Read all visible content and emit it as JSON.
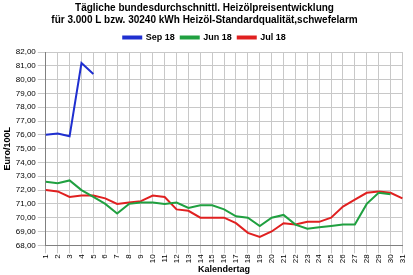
{
  "chart_data": {
    "type": "line",
    "title": [
      "Tägliche bundesdurchschnittl. Heizölpreisentwicklung",
      "für 3.000 L bzw. 30240 kWh Heizöl-Standardqualität,schwefelarm"
    ],
    "x_label": "Kalendertag",
    "y_label": "Euro/100L",
    "categories": [
      "1",
      "2",
      "3",
      "4",
      "5",
      "6",
      "7",
      "8",
      "9",
      "10",
      "11",
      "12",
      "13",
      "14",
      "15",
      "16",
      "17",
      "18",
      "19",
      "20",
      "21",
      "22",
      "23",
      "24",
      "25",
      "26",
      "27",
      "28",
      "29",
      "30",
      "31"
    ],
    "series": [
      {
        "name": "Sep 18",
        "color": "#1f2fd0",
        "values": [
          76.0,
          76.1,
          75.9,
          81.2,
          80.4,
          null,
          null,
          null,
          null,
          null,
          null,
          null,
          null,
          null,
          null,
          null,
          null,
          null,
          null,
          null,
          null,
          null,
          null,
          null,
          null,
          null,
          null,
          null,
          null,
          null,
          null
        ]
      },
      {
        "name": "Jun 18",
        "color": "#20a040",
        "values": [
          72.6,
          72.5,
          72.7,
          72.0,
          71.5,
          71.0,
          70.3,
          71.0,
          71.1,
          71.1,
          71.0,
          71.1,
          70.7,
          70.9,
          70.9,
          70.6,
          70.1,
          70.0,
          69.4,
          70.0,
          70.2,
          69.5,
          69.2,
          69.3,
          69.4,
          69.5,
          69.5,
          71.0,
          71.8,
          71.7,
          null
        ]
      },
      {
        "name": "Jul 18",
        "color": "#e02020",
        "values": [
          72.0,
          71.9,
          71.5,
          71.6,
          71.6,
          71.4,
          71.0,
          71.1,
          71.2,
          71.6,
          71.5,
          70.6,
          70.5,
          70.0,
          70.0,
          70.0,
          69.6,
          68.9,
          68.6,
          69.0,
          69.6,
          69.5,
          69.7,
          69.7,
          70.0,
          70.8,
          71.3,
          71.8,
          71.9,
          71.8,
          71.4
        ]
      }
    ],
    "ylim": [
      68,
      82
    ],
    "yticks": [
      {
        "value": 68,
        "label": "68,00"
      },
      {
        "value": 69,
        "label": "69,00"
      },
      {
        "value": 70,
        "label": "70,00"
      },
      {
        "value": 71,
        "label": "71,00"
      },
      {
        "value": 72,
        "label": "72,00"
      },
      {
        "value": 73,
        "label": "73,00"
      },
      {
        "value": 74,
        "label": "74,00"
      },
      {
        "value": 75,
        "label": "75,00"
      },
      {
        "value": 76,
        "label": "76,00"
      },
      {
        "value": 77,
        "label": "77,00"
      },
      {
        "value": 78,
        "label": "78,00"
      },
      {
        "value": 79,
        "label": "79,00"
      },
      {
        "value": 80,
        "label": "80,00"
      },
      {
        "value": 81,
        "label": "81,00"
      },
      {
        "value": 82,
        "label": "82,00"
      }
    ],
    "grid": true,
    "legend": "top"
  }
}
